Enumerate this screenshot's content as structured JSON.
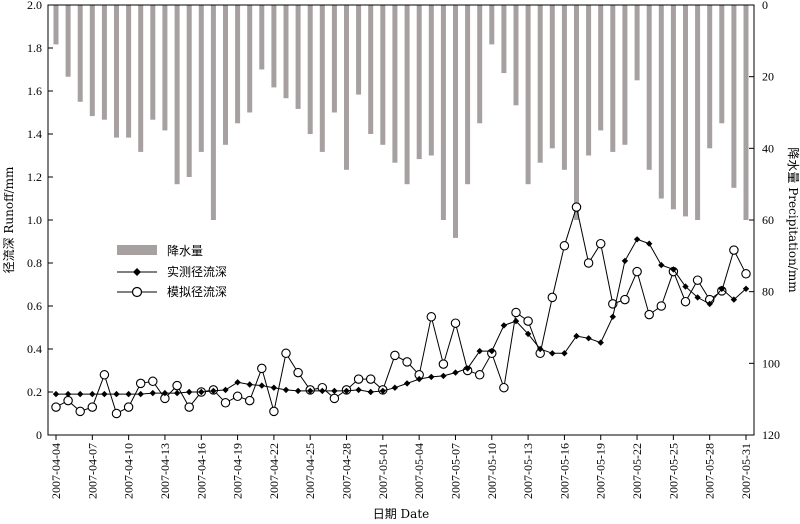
{
  "chart_data": {
    "type": "bar+line",
    "xlabel": "日期  Date",
    "ylabel_left": "径流深  Runoff/mm",
    "ylabel_right": "降水量  Precipitation/mm",
    "ylim_left": [
      0,
      2.0
    ],
    "ylim_right": [
      0,
      120
    ],
    "right_axis_inverted": true,
    "yticks_left": [
      "0",
      "0.2",
      "0.4",
      "0.6",
      "0.8",
      "1.0",
      "1.2",
      "1.4",
      "1.6",
      "1.8",
      "2.0"
    ],
    "yticks_right": [
      "0",
      "20",
      "40",
      "60",
      "80",
      "100",
      "120"
    ],
    "x_tick_labels": [
      "2007-04-04",
      "2007-04-07",
      "2007-04-10",
      "2007-04-13",
      "2007-04-16",
      "2007-04-19",
      "2007-04-22",
      "2007-04-25",
      "2007-04-28",
      "2007-05-01",
      "2007-05-04",
      "2007-05-07",
      "2007-05-10",
      "2007-05-13",
      "2007-05-16",
      "2007-05-19",
      "2007-05-22",
      "2007-05-25",
      "2007-05-28",
      "2007-05-31"
    ],
    "x_start": "2007-04-04",
    "x_end": "2007-05-31",
    "x_tick_every_days": 3,
    "legend": {
      "position": "center-left",
      "items": [
        "降水量",
        "实测径流深",
        "模拟径流深"
      ]
    },
    "series": [
      {
        "name": "降水量",
        "kind": "bar",
        "axis": "right",
        "color": "#a6a0a0",
        "values": [
          11,
          20,
          27,
          31,
          32,
          37,
          37,
          41,
          32,
          35,
          50,
          48,
          41,
          60,
          39,
          33,
          30,
          18,
          23,
          26,
          29,
          36,
          41,
          30,
          46,
          25,
          36,
          39,
          44,
          50,
          43,
          42,
          60,
          65,
          50,
          33,
          11,
          19,
          28,
          50,
          44,
          40,
          46,
          60,
          42,
          35,
          41,
          39,
          21,
          46,
          54,
          57,
          59,
          60,
          40,
          33,
          51,
          60
        ]
      },
      {
        "name": "实测径流深",
        "kind": "line",
        "axis": "left",
        "marker": "diamond",
        "values": [
          0.19,
          0.19,
          0.19,
          0.19,
          0.19,
          0.19,
          0.19,
          0.19,
          0.195,
          0.195,
          0.195,
          0.2,
          0.2,
          0.205,
          0.21,
          0.245,
          0.235,
          0.23,
          0.22,
          0.21,
          0.205,
          0.205,
          0.205,
          0.205,
          0.205,
          0.21,
          0.2,
          0.205,
          0.22,
          0.24,
          0.26,
          0.27,
          0.275,
          0.29,
          0.31,
          0.39,
          0.39,
          0.51,
          0.53,
          0.47,
          0.4,
          0.38,
          0.38,
          0.46,
          0.45,
          0.43,
          0.55,
          0.81,
          0.91,
          0.89,
          0.79,
          0.77,
          0.69,
          0.64,
          0.61,
          0.68,
          0.63,
          0.68
        ]
      },
      {
        "name": "模拟径流深",
        "kind": "line",
        "axis": "left",
        "marker": "circle",
        "values": [
          0.13,
          0.16,
          0.11,
          0.13,
          0.28,
          0.1,
          0.13,
          0.24,
          0.25,
          0.17,
          0.23,
          0.13,
          0.2,
          0.21,
          0.15,
          0.18,
          0.16,
          0.31,
          0.11,
          0.38,
          0.29,
          0.21,
          0.22,
          0.17,
          0.21,
          0.26,
          0.26,
          0.21,
          0.37,
          0.34,
          0.28,
          0.55,
          0.33,
          0.52,
          0.3,
          0.28,
          0.38,
          0.22,
          0.57,
          0.53,
          0.38,
          0.64,
          0.88,
          1.06,
          0.8,
          0.89,
          0.61,
          0.63,
          0.76,
          0.56,
          0.6,
          0.76,
          0.62,
          0.72,
          0.63,
          0.67,
          0.86,
          0.75
        ]
      }
    ]
  }
}
